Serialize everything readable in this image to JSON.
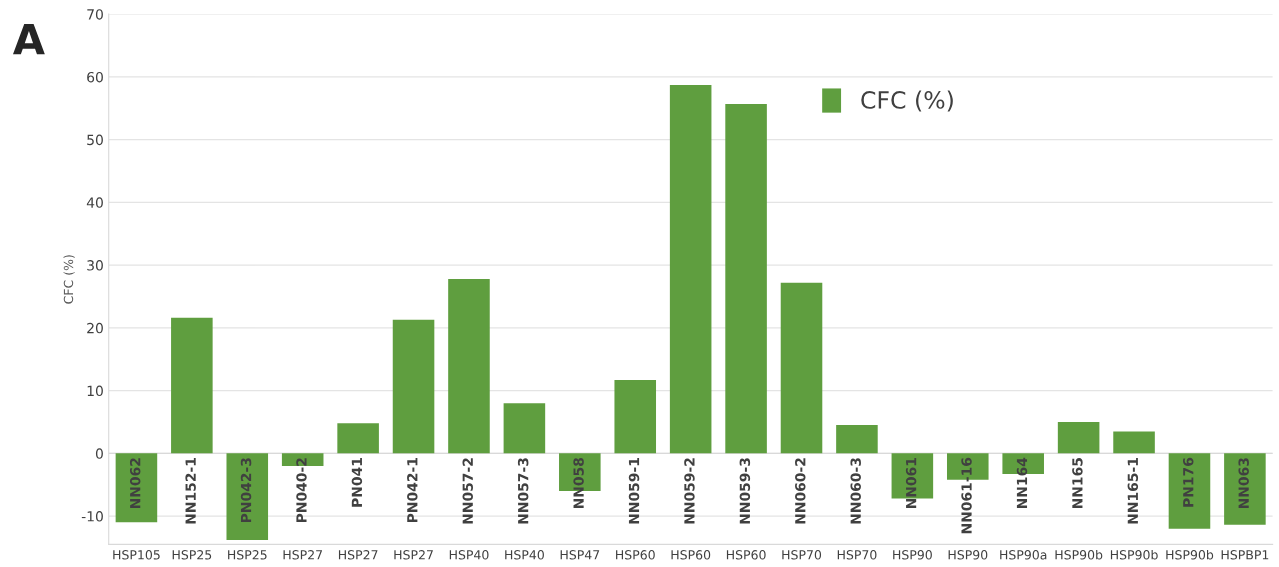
{
  "chart_data": {
    "type": "bar",
    "title": "A",
    "ylabel": "CFC (%)",
    "categories": [
      "HSP105",
      "HSP25",
      "HSP25",
      "HSP27",
      "HSP27",
      "HSP27",
      "HSP40",
      "HSP40",
      "HSP47",
      "HSP60",
      "HSP60",
      "HSP60",
      "HSP70",
      "HSP70",
      "HSP90",
      "HSP90",
      "HSP90a",
      "HSP90b",
      "HSP90b",
      "HSP90b",
      "HSPBP1"
    ],
    "annotations": [
      "NN062",
      "NN152-1",
      "PN042-3",
      "PN040-2",
      "PN041",
      "PN042-1",
      "NN057-2",
      "NN057-3",
      "NN058",
      "NN059-1",
      "NN059-2",
      "NN059-3",
      "NN060-2",
      "NN060-3",
      "NN061",
      "NN061-16",
      "NN164",
      "NN165",
      "NN165-1",
      "PN176",
      "NN063"
    ],
    "series": [
      {
        "name": "CFC (%)",
        "color": "#5f9e3f",
        "values": [
          -11.0,
          21.6,
          -13.8,
          -2.0,
          4.8,
          21.3,
          27.8,
          8.0,
          -6.0,
          11.7,
          58.7,
          55.7,
          27.2,
          4.5,
          -7.2,
          -4.2,
          -3.3,
          5.0,
          3.5,
          -12.0,
          -11.4
        ]
      }
    ],
    "ylim": [
      -14.5,
      70
    ],
    "yticks": [
      -10,
      0,
      10,
      20,
      30,
      40,
      50,
      60,
      70
    ],
    "grid": "y",
    "legend": "top"
  }
}
